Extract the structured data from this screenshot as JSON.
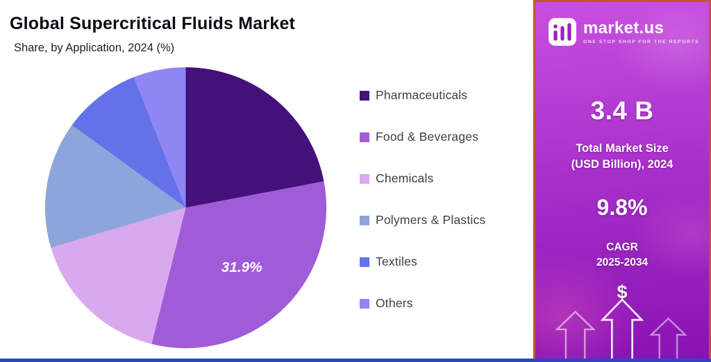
{
  "header": {
    "title": "Global Supercritical Fluids Market",
    "subtitle": "Share, by Application, 2024 (%)"
  },
  "chart_data": {
    "type": "pie",
    "title": "Global Supercritical Fluids Market",
    "subtitle": "Share, by Application, 2024 (%)",
    "labels": [
      "Pharmaceuticals",
      "Food & Beverages",
      "Chemicals",
      "Polymers & Plastics",
      "Textiles",
      "Others"
    ],
    "values": [
      22.0,
      31.9,
      16.5,
      14.6,
      9.0,
      6.0
    ],
    "colors": [
      "#44117B",
      "#A05BD8",
      "#D8A9EF",
      "#8EA5DB",
      "#6571E8",
      "#8E86F2"
    ],
    "annotation": {
      "text": "31.9%",
      "slice": "Food & Beverages"
    },
    "legend_position": "right",
    "start_angle": "top",
    "direction": "clockwise"
  },
  "side_panel": {
    "brand": {
      "name": "market.us",
      "tagline": "ONE STOP SHOP FOR THE REPORTS"
    },
    "market_size": {
      "value": "3.4 B",
      "label_line1": "Total Market Size",
      "label_line2": "(USD Billion), 2024"
    },
    "cagr": {
      "value": "9.8%",
      "label_line1": "CAGR",
      "label_line2": "2025-2034"
    },
    "currency_symbol": "$"
  },
  "colors": {
    "panel_border": "#C2571E",
    "panel_top": "#C94FE0",
    "panel_mid": "#A32BC7",
    "panel_bottom": "#8812B2",
    "bottom_bar": "#2B47C5",
    "title": "#0B0B12",
    "legend_text": "#3E3E42"
  }
}
